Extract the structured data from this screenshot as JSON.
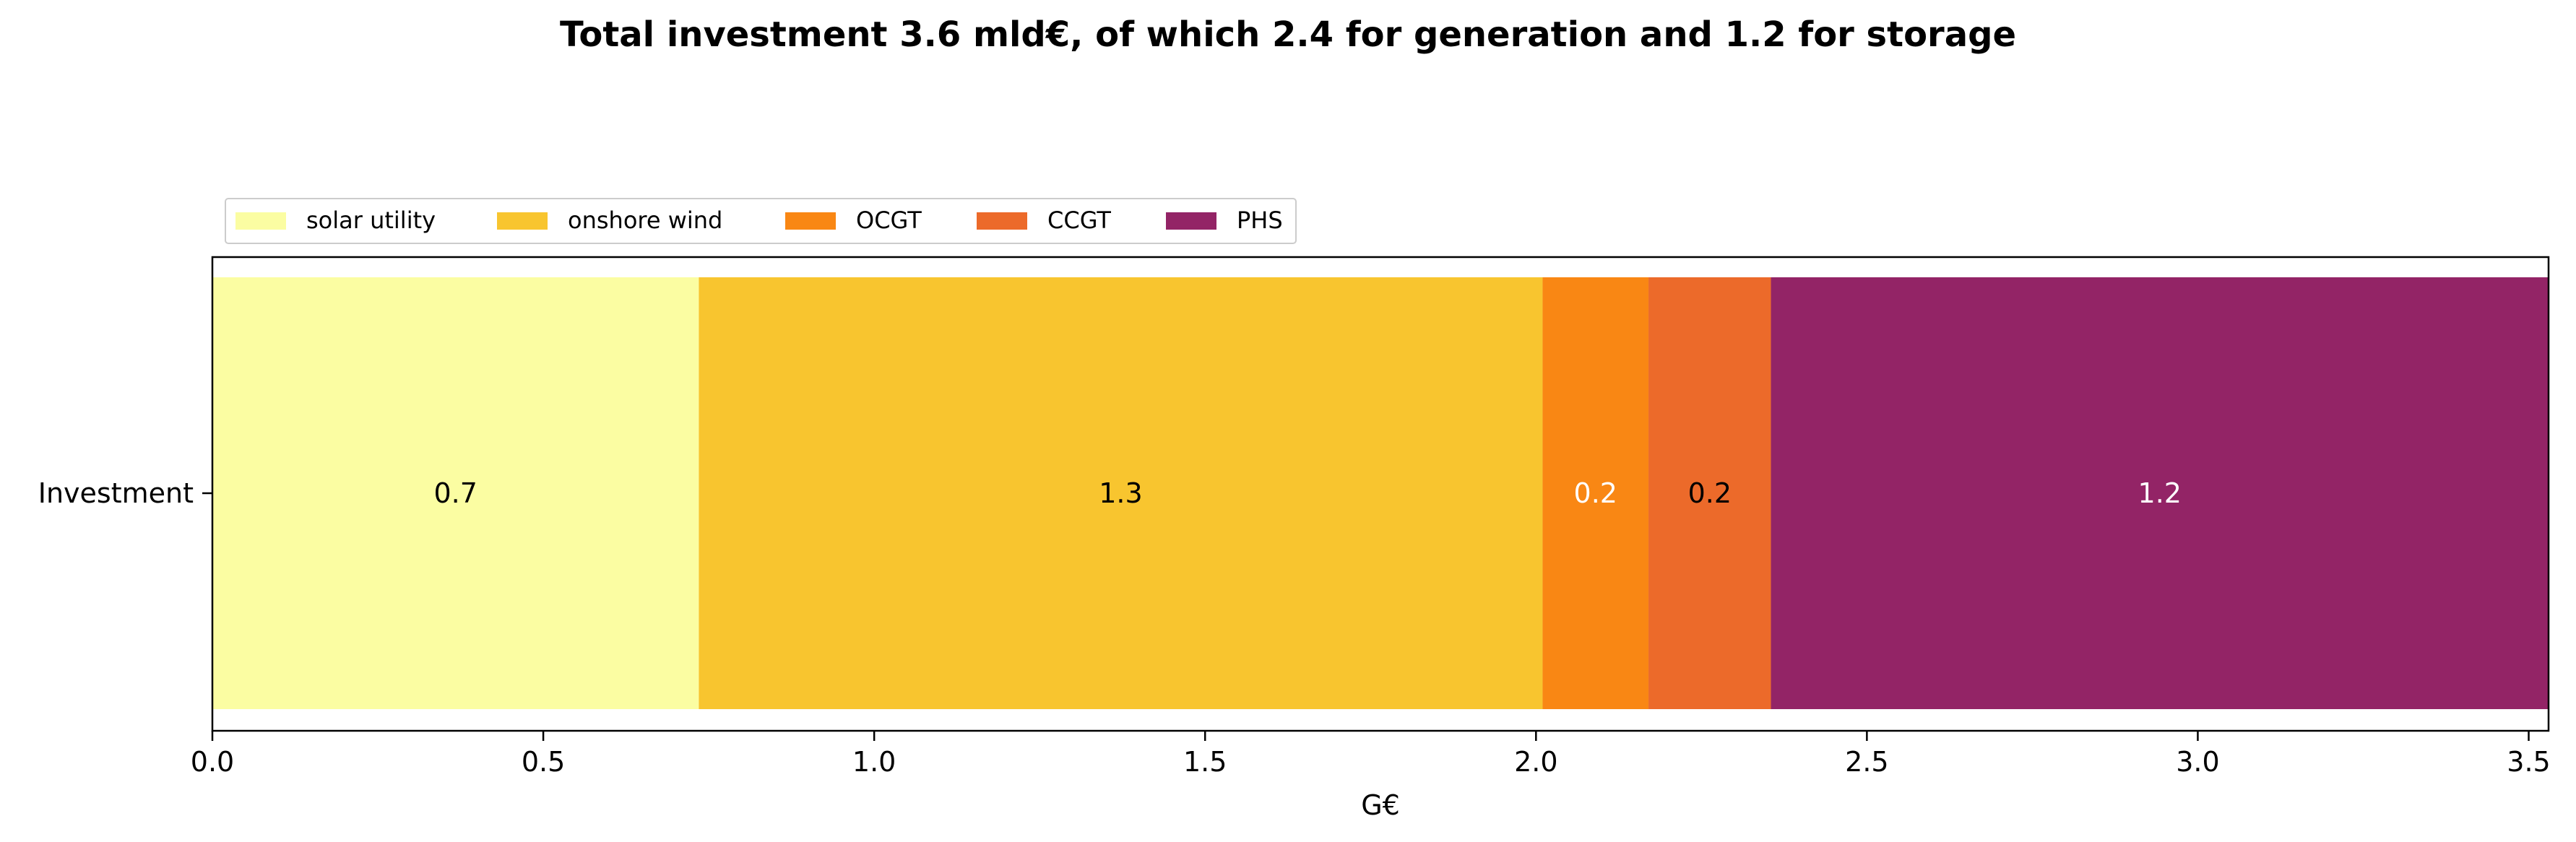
{
  "chart_data": {
    "type": "bar",
    "orientation": "horizontal",
    "stacked": true,
    "title": "Total investment 3.6 mld€, of which 2.4 for generation and 1.2 for storage",
    "xlabel": "G€",
    "ylabel": "",
    "categories": [
      "Investment"
    ],
    "xlim": [
      0.0,
      3.53
    ],
    "xticks": [
      "0.0",
      "0.5",
      "1.0",
      "1.5",
      "2.0",
      "2.5",
      "3.0",
      "3.5"
    ],
    "legend_position": "top-left",
    "grid": false,
    "series": [
      {
        "name": "solar utility",
        "values": [
          0.735
        ],
        "label": "0.7",
        "color": "#fbfda2",
        "label_color": "#000000"
      },
      {
        "name": "onshore wind",
        "values": [
          1.275
        ],
        "label": "1.3",
        "color": "#f8c52f",
        "label_color": "#000000"
      },
      {
        "name": "OCGT",
        "values": [
          0.16
        ],
        "label": "0.2",
        "color": "#f98714",
        "label_color": "#ffffff"
      },
      {
        "name": "CCGT",
        "values": [
          0.185
        ],
        "label": "0.2",
        "color": "#ec6a2a",
        "label_color": "#000000"
      },
      {
        "name": "PHS",
        "values": [
          1.175
        ],
        "label": "1.2",
        "color": "#932466",
        "label_color": "#ffffff"
      }
    ]
  }
}
